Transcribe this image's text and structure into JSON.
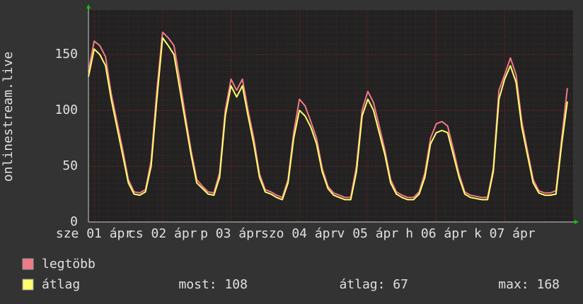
{
  "chart_data": {
    "type": "line",
    "ylabel": "onlinestream.live",
    "x": [
      -2,
      0,
      2,
      4,
      6,
      8,
      10,
      12,
      14,
      16,
      18,
      20,
      22,
      24,
      26,
      28,
      30,
      32,
      34,
      36,
      38,
      40,
      42,
      44,
      46,
      48,
      50,
      52,
      54,
      56,
      58,
      60,
      62,
      64,
      66,
      68,
      70,
      72,
      74,
      76,
      78,
      80,
      82,
      84,
      86,
      88,
      90,
      92,
      94,
      96,
      98,
      100,
      102,
      104,
      106,
      108,
      110,
      112,
      114,
      116,
      118,
      120,
      122,
      124,
      126,
      128,
      130,
      132,
      134,
      136,
      138,
      140,
      142,
      144,
      146,
      148,
      150,
      152,
      154,
      156,
      158,
      160,
      162,
      164,
      166
    ],
    "series": [
      {
        "name": "legtöbb",
        "color": "#f07a85",
        "values": [
          135,
          162,
          158,
          148,
          115,
          90,
          65,
          38,
          27,
          26,
          29,
          55,
          118,
          170,
          165,
          158,
          128,
          95,
          64,
          38,
          32,
          27,
          26,
          44,
          100,
          128,
          118,
          128,
          100,
          75,
          43,
          29,
          27,
          24,
          22,
          38,
          80,
          110,
          104,
          90,
          75,
          48,
          32,
          26,
          24,
          22,
          22,
          50,
          100,
          117,
          107,
          86,
          64,
          38,
          27,
          24,
          22,
          22,
          27,
          44,
          75,
          88,
          90,
          86,
          65,
          43,
          27,
          24,
          23,
          22,
          22,
          48,
          118,
          132,
          147,
          132,
          90,
          64,
          38,
          28,
          26,
          26,
          28,
          75,
          120
        ]
      },
      {
        "name": "átlag",
        "color": "#ffff70",
        "values": [
          130,
          155,
          150,
          140,
          110,
          85,
          60,
          35,
          25,
          24,
          27,
          50,
          110,
          165,
          158,
          150,
          120,
          90,
          60,
          35,
          30,
          25,
          24,
          40,
          95,
          122,
          112,
          122,
          95,
          70,
          40,
          27,
          25,
          22,
          20,
          35,
          75,
          100,
          95,
          85,
          70,
          45,
          30,
          24,
          22,
          20,
          20,
          45,
          95,
          110,
          100,
          80,
          60,
          35,
          25,
          22,
          20,
          20,
          25,
          40,
          70,
          80,
          82,
          80,
          60,
          40,
          25,
          22,
          21,
          20,
          20,
          45,
          110,
          128,
          140,
          125,
          85,
          60,
          35,
          26,
          24,
          24,
          25,
          70,
          108
        ]
      }
    ],
    "xlim": [
      -2,
      168
    ],
    "xticks": [
      {
        "value": 0,
        "label": "sze 01 ápr"
      },
      {
        "value": 24,
        "label": "cs 02 ápr"
      },
      {
        "value": 48,
        "label": "p 03 ápr"
      },
      {
        "value": 72,
        "label": "szo 04 ápr"
      },
      {
        "value": 96,
        "label": "v 05 ápr"
      },
      {
        "value": 120,
        "label": "h 06 ápr"
      },
      {
        "value": 144,
        "label": "k 07 ápr"
      }
    ],
    "ylim": [
      0,
      190
    ],
    "yticks": [
      0,
      50,
      100,
      150
    ],
    "grid": true,
    "stats": [
      "most: 108",
      "átlag: 67",
      "max: 168"
    ]
  }
}
